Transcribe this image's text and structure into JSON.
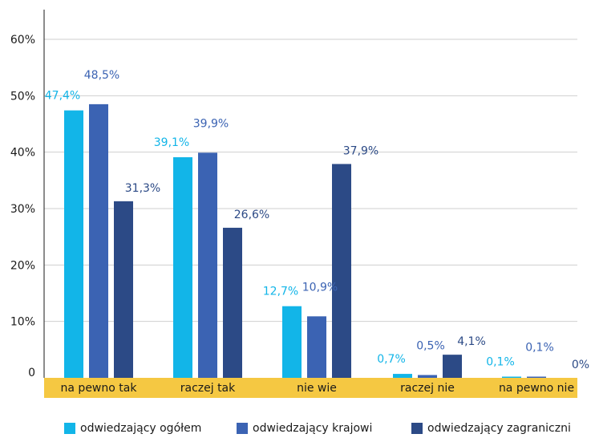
{
  "chart_data": {
    "type": "bar",
    "categories": [
      "na pewno tak",
      "raczej tak",
      "nie wie",
      "raczej nie",
      "na pewno nie"
    ],
    "series": [
      {
        "name": "odwiedzający ogółem",
        "values": [
          47.4,
          39.1,
          12.7,
          0.7,
          0.1
        ],
        "labels": [
          "47,4%",
          "39,1%",
          "12,7%",
          "0,7%",
          "0,1%"
        ],
        "color": "#12b5e8",
        "label_color": "#12b5e8"
      },
      {
        "name": "odwiedzający krajowi",
        "values": [
          48.5,
          39.9,
          10.9,
          0.5,
          0.1
        ],
        "labels": [
          "48,5%",
          "39,9%",
          "10,9%",
          "0,5%",
          "0,1%"
        ],
        "color": "#3b63b3",
        "label_color": "#3b63b3"
      },
      {
        "name": "odwiedzający zagraniczni",
        "values": [
          31.3,
          26.6,
          37.9,
          4.1,
          0
        ],
        "labels": [
          "31,3%",
          "26,6%",
          "37,9%",
          "4,1%",
          "0%"
        ],
        "color": "#2c4a86",
        "label_color": "#2c4a86"
      }
    ],
    "yticks": [
      "0",
      "10%",
      "20%",
      "30%",
      "40%",
      "50%",
      "60%"
    ],
    "ylim": [
      0,
      60
    ],
    "grid": true,
    "legend_position": "bottom",
    "category_band_color": "#f5c842"
  }
}
